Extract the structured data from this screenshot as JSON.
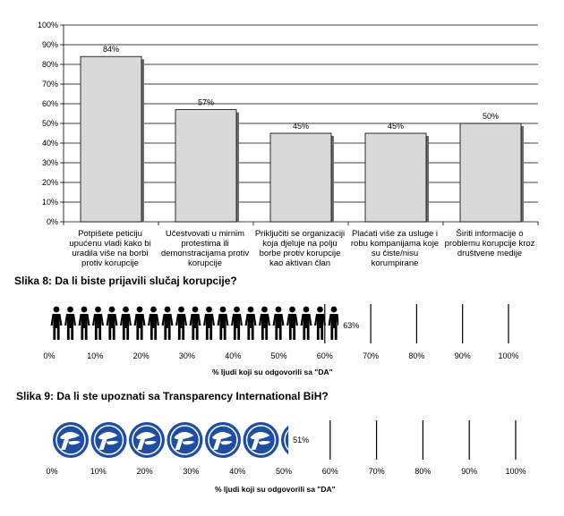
{
  "chart_data": [
    {
      "type": "bar",
      "categories": [
        "Potpišete peticiju upućenu vladi kako bi uradila više na borbi protiv korupcije",
        "Učestvovati u mirnim protestima ili demonstracijama protiv korupcije",
        "Priključiti se organizaciji koja djeluje na polju borbe protiv korupcije kao aktivan član",
        "Plaćati više za usluge i robu kompanijama koje su čiste/nisu korumpirane",
        "Širiti informacije o problemu korupcije kroz društvene medije"
      ],
      "values": [
        84,
        57,
        45,
        45,
        50
      ],
      "value_labels": [
        "84%",
        "57%",
        "45%",
        "45%",
        "50%"
      ],
      "ylim": [
        0,
        100
      ],
      "yticks": [
        "0%",
        "10%",
        "20%",
        "30%",
        "40%",
        "50%",
        "60%",
        "70%",
        "80%",
        "90%",
        "100%"
      ],
      "grid": true,
      "bar_color": "#d9d9d9"
    },
    {
      "type": "bar",
      "subtype": "pictograph",
      "title": "Slika 8: Da li biste prijavili slučaj korupcije?",
      "value": 63,
      "value_label": "63%",
      "icon": "person-icon",
      "xticks": [
        "0%",
        "10%",
        "20%",
        "30%",
        "40%",
        "50%",
        "60%",
        "70%",
        "80%",
        "90%",
        "100%"
      ],
      "xlabel": "% ljudi koji su odgovorili sa \"DA\""
    },
    {
      "type": "bar",
      "subtype": "pictograph",
      "title": "Slika  9: Da li ste upoznati sa Transparency International BiH?",
      "value": 51,
      "value_label": "51%",
      "icon": "transparency-logo-icon",
      "icon_color": "#1f4ea1",
      "xticks": [
        "0%",
        "10%",
        "20%",
        "30%",
        "40%",
        "50%",
        "60%",
        "70%",
        "80%",
        "90%",
        "100%"
      ],
      "xlabel": "% ljudi koji su odgovorili sa \"DA\""
    }
  ]
}
